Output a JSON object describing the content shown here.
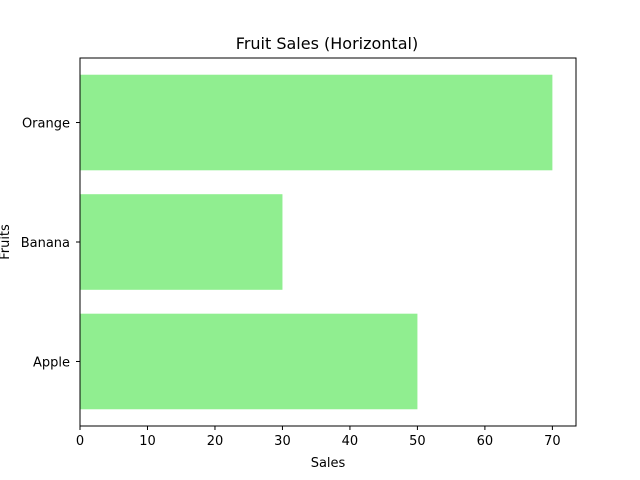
{
  "chart_data": {
    "type": "bar",
    "orientation": "horizontal",
    "title": "Fruit Sales (Horizontal)",
    "xlabel": "Sales",
    "ylabel": "Fruits",
    "categories": [
      "Apple",
      "Banana",
      "Orange"
    ],
    "values": [
      50,
      30,
      70
    ],
    "xlim": [
      0,
      73.5
    ],
    "xticks": [
      0,
      10,
      20,
      30,
      40,
      50,
      60,
      70
    ],
    "bar_color": "#90ee90",
    "grid": false,
    "legend": "none"
  }
}
